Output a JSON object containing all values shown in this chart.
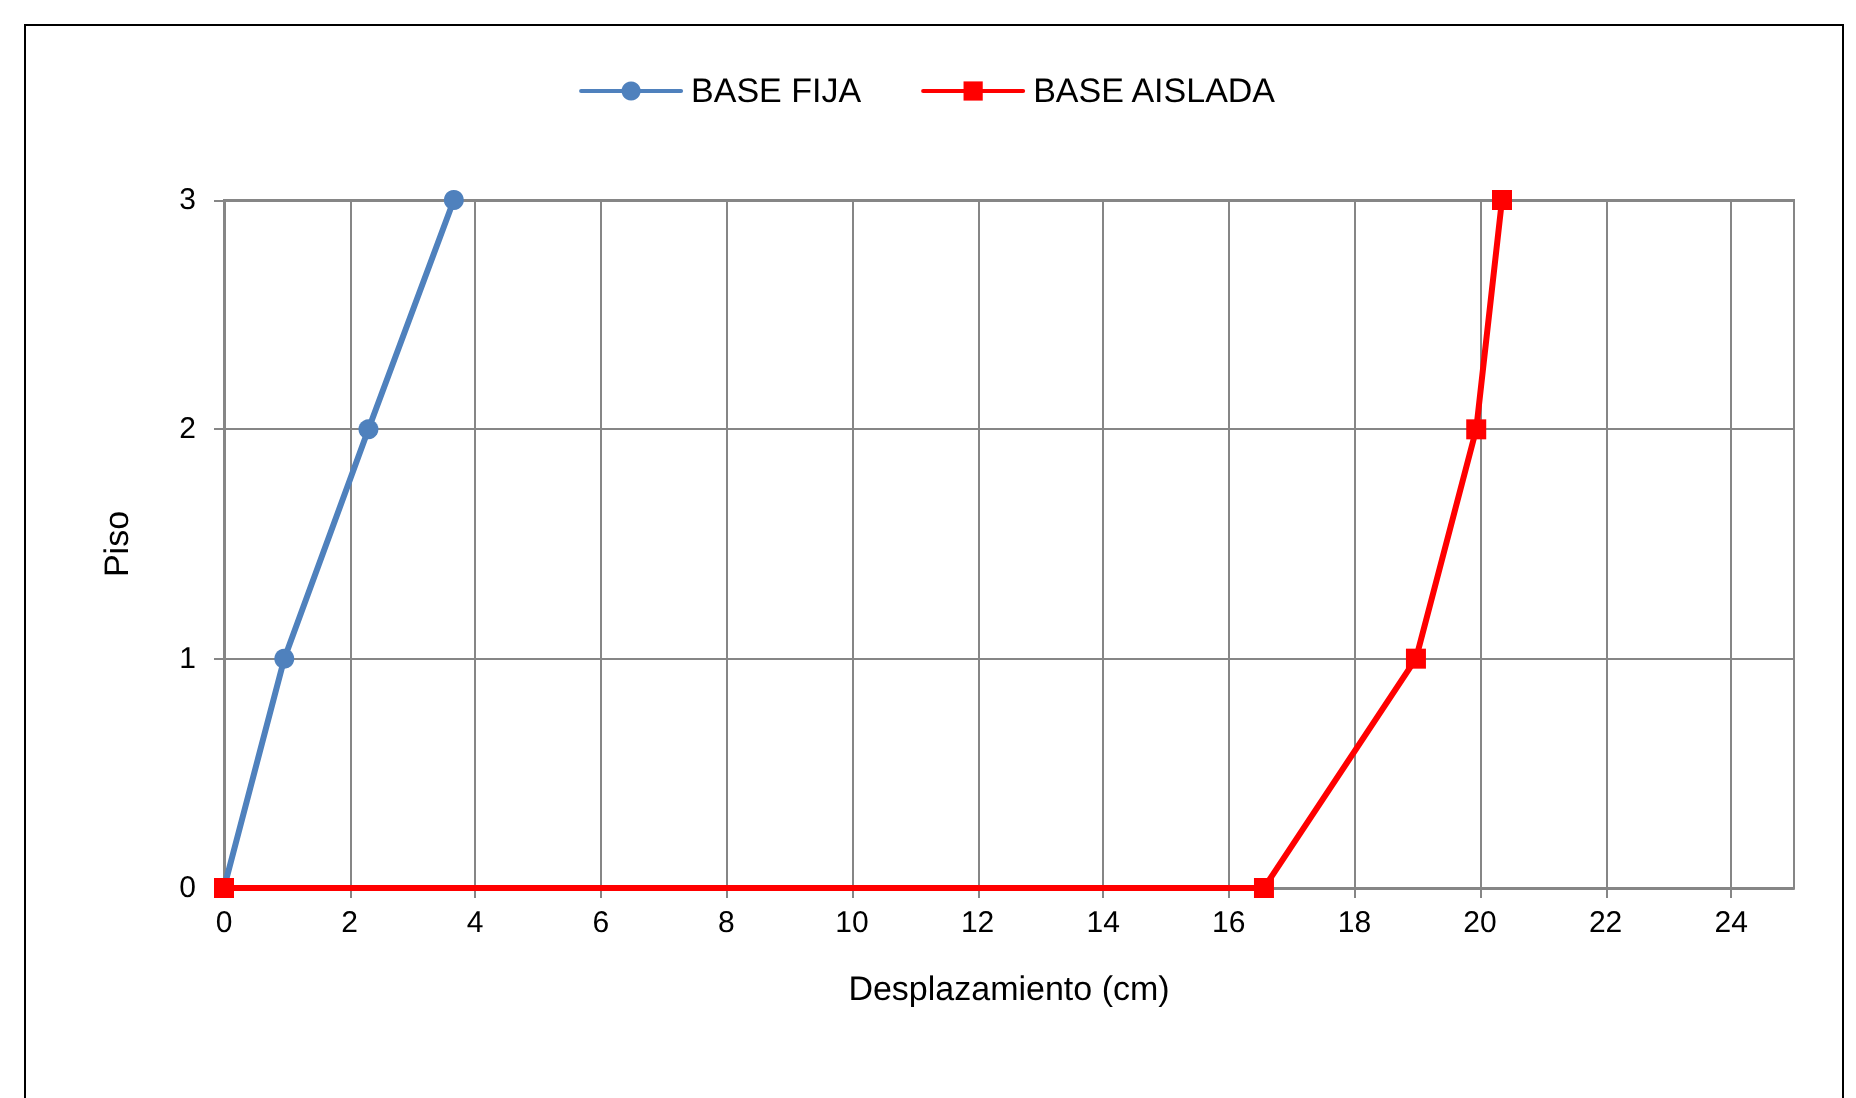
{
  "chart_data": {
    "type": "line",
    "xlabel": "Desplazamiento (cm)",
    "ylabel": "Piso",
    "xlim": [
      0,
      25
    ],
    "xticks": [
      0,
      2,
      4,
      6,
      8,
      10,
      12,
      14,
      16,
      18,
      20,
      22,
      24
    ],
    "ylim": [
      0,
      3
    ],
    "yticks": [
      0,
      1,
      2,
      3
    ],
    "grid": true,
    "legend": "top",
    "series": [
      {
        "name": "BASE FIJA",
        "color": "#4f81bd",
        "marker": "circle",
        "x": [
          0,
          0.96,
          2.3,
          3.66
        ],
        "values": [
          0,
          1,
          2,
          3
        ]
      },
      {
        "name": "BASE AISLADA",
        "color": "#ff0000",
        "marker": "square",
        "x": [
          0,
          16.56,
          18.98,
          19.94,
          20.35
        ],
        "values": [
          0,
          0,
          1,
          2,
          3
        ]
      }
    ]
  }
}
